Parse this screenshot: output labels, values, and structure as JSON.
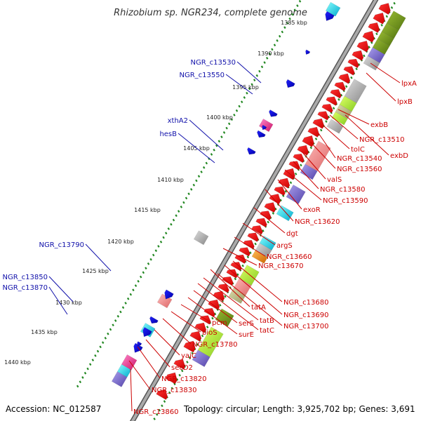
{
  "title": "Rhizobium sp. NGR234, complete genome",
  "footer": {
    "accession": "Accession: NC_012587",
    "summary": "Topology: circular; Length: 3,925,702 bp; Genes: 3,691"
  },
  "ruler": {
    "labels": [
      "1385 kbp",
      "1390 kbp",
      "1395 kbp",
      "1400 kbp",
      "1405 kbp",
      "1410 kbp",
      "1415 kbp",
      "1420 kbp",
      "1425 kbp",
      "1430 kbp",
      "1435 kbp",
      "1440 kbp"
    ]
  },
  "reverse_labels": [
    "NGR_c13530",
    "NGR_c13550",
    "xthA2",
    "hesB",
    "NGR_c13790",
    "NGR_c13850",
    "NGR_c13870"
  ],
  "forward_labels": [
    "lpxA",
    "lpxB",
    "exbB",
    "NGR_c13510",
    "exbD",
    "tolC",
    "NGR_c13540",
    "NGR_c13560",
    "valS",
    "NGR_c13580",
    "NGR_c13590",
    "exoR",
    "NGR_c13620",
    "dgt",
    "argS",
    "NGR_c13660",
    "NGR_c13670",
    "NGR_c13680",
    "tatA",
    "NGR_c13690",
    "tatB",
    "NGR_c13700",
    "tatC",
    "serS",
    "surE",
    "pcm",
    "bioS",
    "NGR_c13780",
    "yajC",
    "secD2",
    "NGR_c13820",
    "NGR_c13830",
    "NGR_c13860"
  ],
  "colors": {
    "backbone": "#888888",
    "ruler_ticks": "#228822",
    "forward_gene": "#ff0000",
    "reverse_gene": "#0000ff",
    "forward_label": "#cc0000",
    "reverse_label": "#1010aa",
    "cds_olive": "#668811",
    "cds_lime": "#aaee33",
    "cds_salmon": "#ee8888",
    "cds_slate": "#7766cc",
    "cds_cyan": "#11cccc",
    "cds_grey": "#999999",
    "cds_tan": "#bbbb88",
    "cds_orange": "#ee8811",
    "cds_magenta": "#ee2288"
  }
}
